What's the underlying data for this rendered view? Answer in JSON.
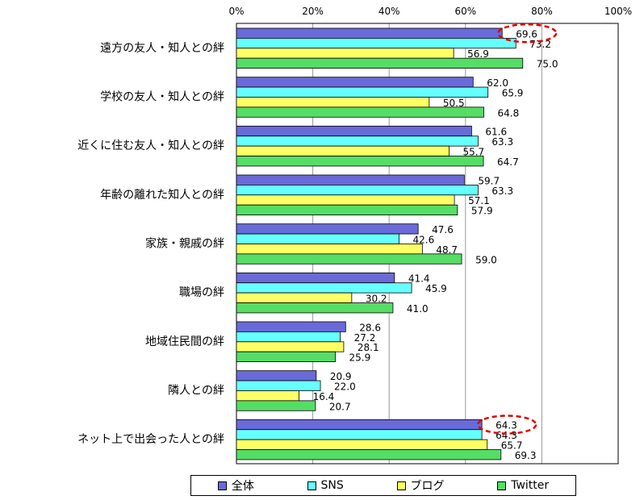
{
  "chart_data": {
    "type": "bar",
    "orientation": "horizontal",
    "xlim": [
      0,
      100
    ],
    "xticks": [
      "0%",
      "20%",
      "40%",
      "60%",
      "80%",
      "100%"
    ],
    "categories": [
      "遠方の友人・知人との絆",
      "学校の友人・知人との絆",
      "近くに住む友人・知人との絆",
      "年齢の離れた知人との絆",
      "家族・親戚の絆",
      "職場の絆",
      "地域住民間の絆",
      "隣人との絆",
      "ネット上で出会った人との絆"
    ],
    "series": [
      {
        "name": "全体",
        "color": "#6a6ad8",
        "values": [
          69.6,
          62.0,
          61.6,
          59.7,
          47.6,
          41.4,
          28.6,
          20.9,
          64.3
        ]
      },
      {
        "name": "SNS",
        "color": "#66ffff",
        "values": [
          73.2,
          65.9,
          63.3,
          63.3,
          42.6,
          45.9,
          27.2,
          22.0,
          64.3
        ]
      },
      {
        "name": "ブログ",
        "color": "#ffff66",
        "values": [
          56.9,
          50.5,
          55.7,
          57.1,
          48.7,
          30.2,
          28.1,
          16.4,
          65.7
        ]
      },
      {
        "name": "Twitter",
        "color": "#55dd66",
        "values": [
          75.0,
          64.8,
          64.7,
          57.9,
          59.0,
          41.0,
          25.9,
          20.7,
          69.3
        ]
      }
    ],
    "legend_position": "bottom",
    "grid": "vertical",
    "highlighted": [
      {
        "category": "遠方の友人・知人との絆",
        "series": "全体"
      },
      {
        "category": "ネット上で出会った人との絆",
        "series": "全体"
      }
    ],
    "highlight_color": "#dd0000"
  }
}
